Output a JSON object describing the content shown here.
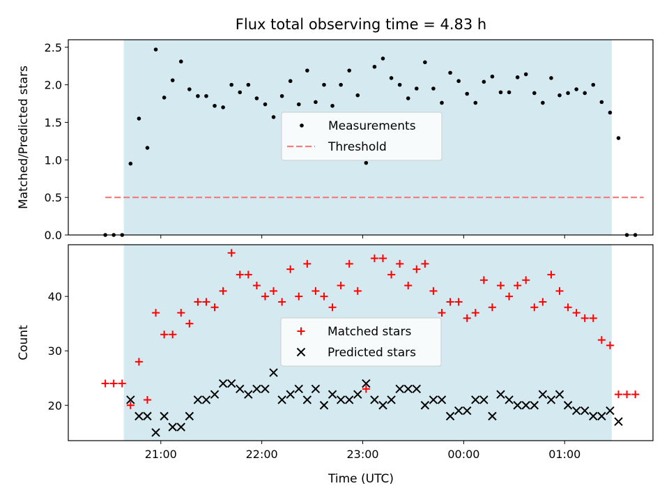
{
  "title": "Flux total observing time = 4.83 h",
  "xlabel": "Time (UTC)",
  "x_ticks": [
    "21:00",
    "22:00",
    "23:00",
    "00:00",
    "01:00"
  ],
  "colors": {
    "shade": "#d4eaf0",
    "measurement": "#000000",
    "threshold": "#f08080",
    "matched": "#ff0000",
    "predicted": "#000000"
  },
  "chart_data": [
    {
      "type": "scatter",
      "ylabel": "Matched/Predicted stars",
      "ylim": [
        0,
        2.6
      ],
      "y_ticks": [
        "0.0",
        "0.5",
        "1.0",
        "1.5",
        "2.0",
        "2.5"
      ],
      "x_unit": "hours since 20:00 UTC",
      "shaded_interval": [
        "20:38",
        "25:28"
      ],
      "legend": {
        "placement": "center"
      },
      "series": [
        {
          "name": "Measurements",
          "marker": "dot",
          "points": [
            [
              "20:27",
              0.0
            ],
            [
              "20:32",
              0.0
            ],
            [
              "20:37",
              0.0
            ],
            [
              "20:42",
              0.95
            ],
            [
              "20:47",
              1.55
            ],
            [
              "20:52",
              1.16
            ],
            [
              "20:57",
              2.47
            ],
            [
              "21:02",
              1.83
            ],
            [
              "21:07",
              2.06
            ],
            [
              "21:12",
              2.31
            ],
            [
              "21:17",
              1.94
            ],
            [
              "21:22",
              1.85
            ],
            [
              "21:27",
              1.85
            ],
            [
              "21:32",
              1.72
            ],
            [
              "21:37",
              1.7
            ],
            [
              "21:42",
              2.0
            ],
            [
              "21:47",
              1.9
            ],
            [
              "21:52",
              2.0
            ],
            [
              "21:57",
              1.82
            ],
            [
              "22:02",
              1.74
            ],
            [
              "22:07",
              1.57
            ],
            [
              "22:12",
              1.85
            ],
            [
              "22:17",
              2.05
            ],
            [
              "22:22",
              1.74
            ],
            [
              "22:27",
              2.19
            ],
            [
              "22:32",
              1.77
            ],
            [
              "22:37",
              2.0
            ],
            [
              "22:42",
              1.72
            ],
            [
              "22:47",
              2.0
            ],
            [
              "22:52",
              2.19
            ],
            [
              "22:57",
              1.86
            ],
            [
              "23:02",
              0.96
            ],
            [
              "23:07",
              2.24
            ],
            [
              "23:12",
              2.35
            ],
            [
              "23:17",
              2.09
            ],
            [
              "23:22",
              2.0
            ],
            [
              "23:27",
              1.82
            ],
            [
              "23:32",
              1.95
            ],
            [
              "23:37",
              2.3
            ],
            [
              "23:42",
              1.95
            ],
            [
              "23:47",
              1.76
            ],
            [
              "23:52",
              2.16
            ],
            [
              "23:57",
              2.05
            ],
            [
              "00:02",
              1.88
            ],
            [
              "00:07",
              1.76
            ],
            [
              "00:12",
              2.04
            ],
            [
              "00:17",
              2.11
            ],
            [
              "00:22",
              1.9
            ],
            [
              "00:27",
              1.9
            ],
            [
              "00:32",
              2.1
            ],
            [
              "00:37",
              2.14
            ],
            [
              "00:42",
              1.89
            ],
            [
              "00:47",
              1.76
            ],
            [
              "00:52",
              2.09
            ],
            [
              "00:57",
              1.86
            ],
            [
              "01:02",
              1.89
            ],
            [
              "01:07",
              1.94
            ],
            [
              "01:12",
              1.89
            ],
            [
              "01:17",
              2.0
            ],
            [
              "01:22",
              1.77
            ],
            [
              "01:27",
              1.63
            ],
            [
              "01:32",
              1.29
            ],
            [
              "01:37",
              0.0
            ],
            [
              "01:42",
              0.0
            ]
          ]
        },
        {
          "name": "Threshold",
          "type": "line",
          "style": "dashed",
          "points": [
            [
              "20:27",
              0.5
            ],
            [
              "01:47",
              0.5
            ]
          ]
        }
      ]
    },
    {
      "type": "scatter",
      "ylabel": "Count",
      "ylim": [
        13.5,
        49.5
      ],
      "y_ticks": [
        "20",
        "30",
        "40"
      ],
      "x_unit": "hours since 20:00 UTC",
      "shaded_interval": [
        "20:38",
        "25:28"
      ],
      "legend": {
        "placement": "center"
      },
      "series": [
        {
          "name": "Matched stars",
          "marker": "plus",
          "points": [
            [
              "20:27",
              24
            ],
            [
              "20:32",
              24
            ],
            [
              "20:37",
              24
            ],
            [
              "20:42",
              20
            ],
            [
              "20:47",
              28
            ],
            [
              "20:52",
              21
            ],
            [
              "20:57",
              37
            ],
            [
              "21:02",
              33
            ],
            [
              "21:07",
              33
            ],
            [
              "21:12",
              37
            ],
            [
              "21:17",
              35
            ],
            [
              "21:22",
              39
            ],
            [
              "21:27",
              39
            ],
            [
              "21:32",
              38
            ],
            [
              "21:37",
              41
            ],
            [
              "21:42",
              48
            ],
            [
              "21:47",
              44
            ],
            [
              "21:52",
              44
            ],
            [
              "21:57",
              42
            ],
            [
              "22:02",
              40
            ],
            [
              "22:07",
              41
            ],
            [
              "22:12",
              39
            ],
            [
              "22:17",
              45
            ],
            [
              "22:22",
              40
            ],
            [
              "22:27",
              46
            ],
            [
              "22:32",
              41
            ],
            [
              "22:37",
              40
            ],
            [
              "22:42",
              38
            ],
            [
              "22:47",
              42
            ],
            [
              "22:52",
              46
            ],
            [
              "22:57",
              41
            ],
            [
              "23:02",
              23
            ],
            [
              "23:07",
              47
            ],
            [
              "23:12",
              47
            ],
            [
              "23:17",
              44
            ],
            [
              "23:22",
              46
            ],
            [
              "23:27",
              42
            ],
            [
              "23:32",
              45
            ],
            [
              "23:37",
              46
            ],
            [
              "23:42",
              41
            ],
            [
              "23:47",
              37
            ],
            [
              "23:52",
              39
            ],
            [
              "23:57",
              39
            ],
            [
              "00:02",
              36
            ],
            [
              "00:07",
              37
            ],
            [
              "00:12",
              43
            ],
            [
              "00:17",
              38
            ],
            [
              "00:22",
              42
            ],
            [
              "00:27",
              40
            ],
            [
              "00:32",
              42
            ],
            [
              "00:37",
              43
            ],
            [
              "00:42",
              38
            ],
            [
              "00:47",
              39
            ],
            [
              "00:52",
              44
            ],
            [
              "00:57",
              41
            ],
            [
              "01:02",
              38
            ],
            [
              "01:07",
              37
            ],
            [
              "01:12",
              36
            ],
            [
              "01:17",
              36
            ],
            [
              "01:22",
              32
            ],
            [
              "01:27",
              31
            ],
            [
              "01:32",
              22
            ],
            [
              "01:37",
              22
            ],
            [
              "01:42",
              22
            ]
          ]
        },
        {
          "name": "Predicted stars",
          "marker": "x",
          "points": [
            [
              "20:42",
              21
            ],
            [
              "20:47",
              18
            ],
            [
              "20:52",
              18
            ],
            [
              "20:57",
              15
            ],
            [
              "21:02",
              18
            ],
            [
              "21:07",
              16
            ],
            [
              "21:12",
              16
            ],
            [
              "21:17",
              18
            ],
            [
              "21:22",
              21
            ],
            [
              "21:27",
              21
            ],
            [
              "21:32",
              22
            ],
            [
              "21:37",
              24
            ],
            [
              "21:42",
              24
            ],
            [
              "21:47",
              23
            ],
            [
              "21:52",
              22
            ],
            [
              "21:57",
              23
            ],
            [
              "22:02",
              23
            ],
            [
              "22:07",
              26
            ],
            [
              "22:12",
              21
            ],
            [
              "22:17",
              22
            ],
            [
              "22:22",
              23
            ],
            [
              "22:27",
              21
            ],
            [
              "22:32",
              23
            ],
            [
              "22:37",
              20
            ],
            [
              "22:42",
              22
            ],
            [
              "22:47",
              21
            ],
            [
              "22:52",
              21
            ],
            [
              "22:57",
              22
            ],
            [
              "23:02",
              24
            ],
            [
              "23:07",
              21
            ],
            [
              "23:12",
              20
            ],
            [
              "23:17",
              21
            ],
            [
              "23:22",
              23
            ],
            [
              "23:27",
              23
            ],
            [
              "23:32",
              23
            ],
            [
              "23:37",
              20
            ],
            [
              "23:42",
              21
            ],
            [
              "23:47",
              21
            ],
            [
              "23:52",
              18
            ],
            [
              "23:57",
              19
            ],
            [
              "00:02",
              19
            ],
            [
              "00:07",
              21
            ],
            [
              "00:12",
              21
            ],
            [
              "00:17",
              18
            ],
            [
              "00:22",
              22
            ],
            [
              "00:27",
              21
            ],
            [
              "00:32",
              20
            ],
            [
              "00:37",
              20
            ],
            [
              "00:42",
              20
            ],
            [
              "00:47",
              22
            ],
            [
              "00:52",
              21
            ],
            [
              "00:57",
              22
            ],
            [
              "01:02",
              20
            ],
            [
              "01:07",
              19
            ],
            [
              "01:12",
              19
            ],
            [
              "01:17",
              18
            ],
            [
              "01:22",
              18
            ],
            [
              "01:27",
              19
            ],
            [
              "01:32",
              17
            ]
          ]
        }
      ]
    }
  ]
}
